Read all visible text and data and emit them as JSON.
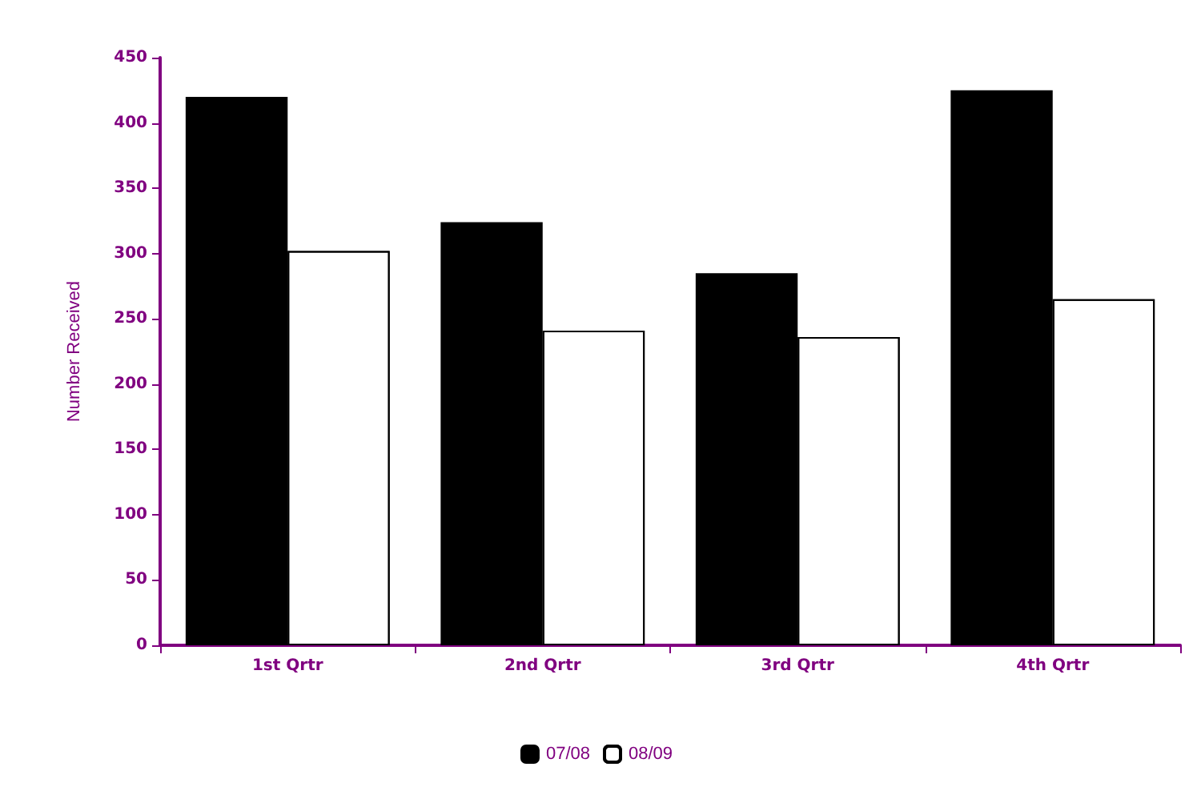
{
  "chart_data": {
    "type": "bar",
    "ylabel": "Number Received",
    "categories": [
      "1st Qrtr",
      "2nd Qrtr",
      "3rd Qrtr",
      "4th Qrtr"
    ],
    "series": [
      {
        "name": "07/08",
        "color": "#000000",
        "values": [
          420,
          324,
          285,
          425
        ]
      },
      {
        "name": "08/09",
        "color": "#ffffff",
        "values": [
          302,
          241,
          236,
          265
        ]
      }
    ],
    "ylim": [
      0,
      450
    ],
    "yticks": [
      0,
      50,
      100,
      150,
      200,
      250,
      300,
      350,
      400,
      450
    ],
    "grid": false,
    "legend": "bottom"
  }
}
